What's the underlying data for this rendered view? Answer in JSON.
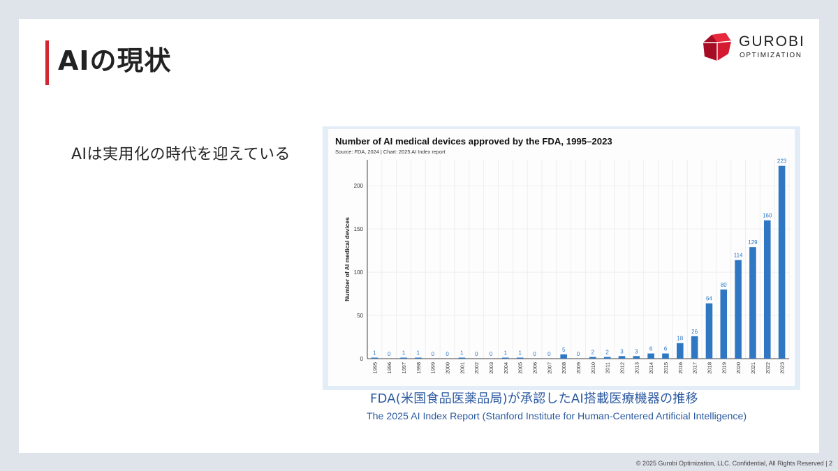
{
  "slide": {
    "title": "AIの現状",
    "lead": "AIは実用化の時代を迎えている",
    "caption": "FDA(米国食品医薬品局)が承認したAI搭載医療機器の推移",
    "source": "The 2025 AI Index Report (Stanford Institute for Human-Centered Artificial Intelligence)"
  },
  "logo": {
    "name": "GUROBI",
    "sub": "OPTIMIZATION"
  },
  "footer": {
    "text": "© 2025 Gurobi Optimization, LLC. Confidential, All Rights Reserved | 2"
  },
  "colors": {
    "accent": "#d22630",
    "bar": "#2f77c2",
    "label": "#2f77c2",
    "caption": "#2c5aa0"
  },
  "chart_data": {
    "type": "bar",
    "title": "Number of AI medical devices approved by the FDA, 1995–2023",
    "subtitle": "Source: FDA, 2024 | Chart: 2025 AI Index report",
    "xlabel": "",
    "ylabel": "Number of AI medical devices",
    "ylim": [
      0,
      230
    ],
    "yticks": [
      0,
      50,
      100,
      150,
      200
    ],
    "grid": true,
    "categories": [
      "1995",
      "1996",
      "1997",
      "1998",
      "1999",
      "2000",
      "2001",
      "2002",
      "2003",
      "2004",
      "2005",
      "2006",
      "2007",
      "2008",
      "2009",
      "2010",
      "2011",
      "2012",
      "2013",
      "2014",
      "2015",
      "2016",
      "2017",
      "2018",
      "2019",
      "2020",
      "2021",
      "2022",
      "2023"
    ],
    "values": [
      1,
      0,
      1,
      1,
      0,
      0,
      1,
      0,
      0,
      1,
      1,
      0,
      0,
      5,
      0,
      2,
      2,
      3,
      3,
      6,
      6,
      18,
      26,
      64,
      80,
      114,
      129,
      160,
      223
    ]
  }
}
